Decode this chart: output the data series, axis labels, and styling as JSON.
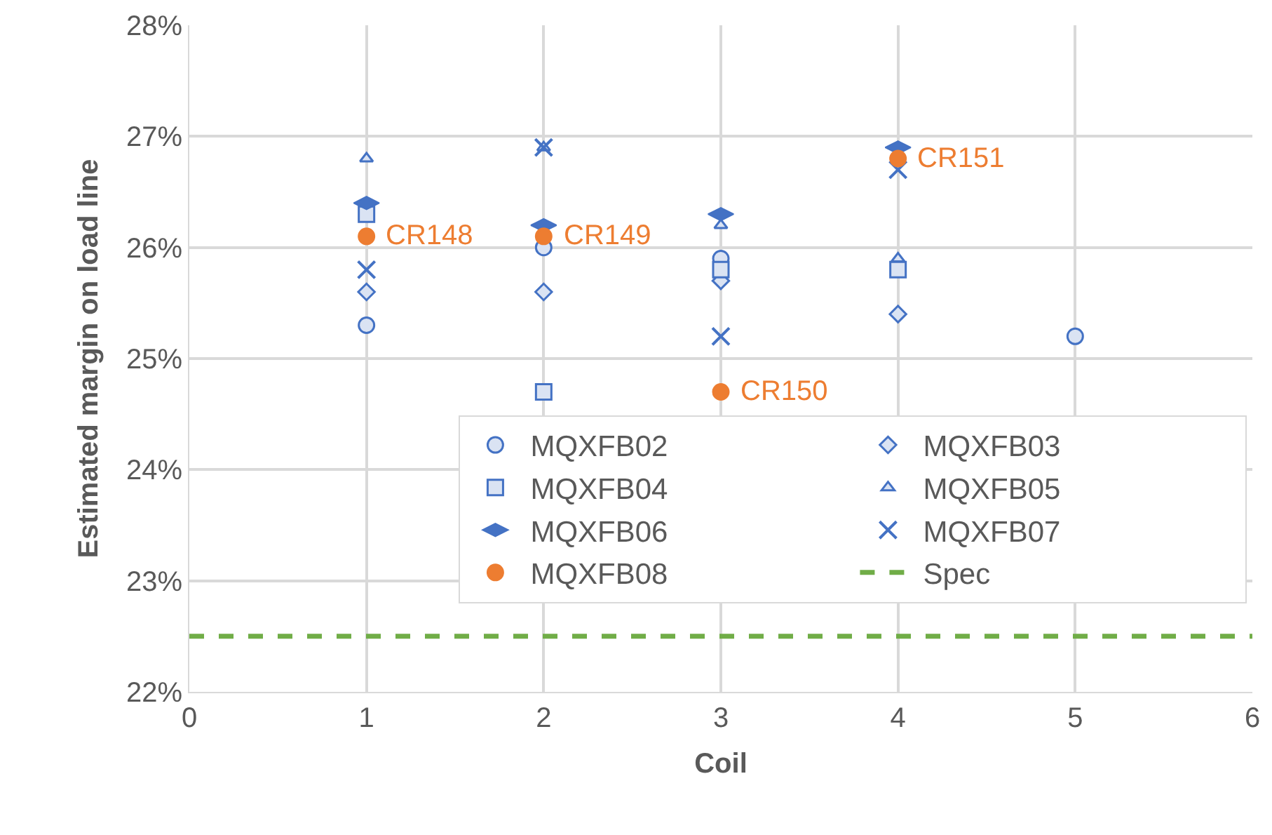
{
  "chart_data": {
    "type": "scatter",
    "xlabel": "Coil",
    "ylabel": "Estimated margin on load line",
    "xlim": [
      0,
      6
    ],
    "xticks": [
      0,
      1,
      2,
      3,
      4,
      5,
      6
    ],
    "ylim": [
      22,
      28
    ],
    "yticks": [
      {
        "value": 22,
        "label": "22%"
      },
      {
        "value": 23,
        "label": "23%"
      },
      {
        "value": 24,
        "label": "24%"
      },
      {
        "value": 25,
        "label": "25%"
      },
      {
        "value": 26,
        "label": "26%"
      },
      {
        "value": 27,
        "label": "27%"
      },
      {
        "value": 28,
        "label": "28%"
      }
    ],
    "x": [
      1,
      2,
      3,
      4,
      5
    ],
    "grid": true,
    "legend": "bottom right",
    "series": [
      {
        "name": "MQXFB02",
        "color": "#4472c4",
        "marker": "circle",
        "values": [
          25.3,
          26.0,
          25.9,
          null,
          25.2
        ]
      },
      {
        "name": "MQXFB03",
        "color": "#4472c4",
        "marker": "diamond",
        "values": [
          25.6,
          25.6,
          25.7,
          25.4,
          null
        ]
      },
      {
        "name": "MQXFB04",
        "color": "#4472c4",
        "marker": "square",
        "values": [
          26.3,
          24.7,
          25.8,
          25.8,
          null
        ]
      },
      {
        "name": "MQXFB05",
        "color": "#4472c4",
        "marker": "triangle",
        "values": [
          26.8,
          26.9,
          26.2,
          25.9,
          null
        ]
      },
      {
        "name": "MQXFB06",
        "color": "#4472c4",
        "values": [
          26.4,
          26.2,
          26.3,
          26.9,
          null
        ]
      },
      {
        "name": "MQXFB07",
        "color": "#4472c4",
        "marker": "cross",
        "values": [
          25.8,
          26.9,
          25.2,
          26.7,
          null
        ]
      },
      {
        "name": "MQXFB08",
        "color": "#ed7d31",
        "marker": "circle",
        "values": [
          26.1,
          26.1,
          24.7,
          26.8,
          null
        ]
      }
    ],
    "ref_lines": [
      {
        "axis": "y",
        "value": 22.5,
        "label": "Spec",
        "color": "#70ad47",
        "line_style": "dashed"
      }
    ],
    "annotations": [
      {
        "text": "CR148",
        "x": 1,
        "y": 26.1
      },
      {
        "text": "CR149",
        "x": 2,
        "y": 26.1
      },
      {
        "text": "CR150",
        "x": 3,
        "y": 24.7
      },
      {
        "text": "CR151",
        "x": 4,
        "y": 26.8
      }
    ]
  }
}
